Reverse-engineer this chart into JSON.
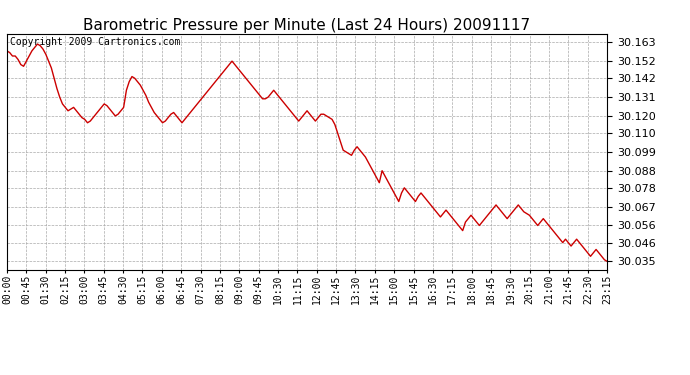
{
  "title": "Barometric Pressure per Minute (Last 24 Hours) 20091117",
  "copyright_text": "Copyright 2009 Cartronics.com",
  "line_color": "#cc0000",
  "background_color": "#ffffff",
  "grid_color": "#aaaaaa",
  "yticks": [
    30.035,
    30.046,
    30.056,
    30.067,
    30.078,
    30.088,
    30.099,
    30.11,
    30.12,
    30.131,
    30.142,
    30.152,
    30.163
  ],
  "ylim": [
    30.03,
    30.168
  ],
  "xtick_labels": [
    "00:00",
    "00:45",
    "01:30",
    "02:15",
    "03:00",
    "03:45",
    "04:30",
    "05:15",
    "06:00",
    "06:45",
    "07:30",
    "08:15",
    "09:00",
    "09:45",
    "10:30",
    "11:15",
    "12:00",
    "12:45",
    "13:30",
    "14:15",
    "15:00",
    "15:45",
    "16:30",
    "17:15",
    "18:00",
    "18:45",
    "19:30",
    "20:15",
    "21:00",
    "21:45",
    "22:30",
    "23:15"
  ],
  "pressure_data": [
    30.158,
    30.157,
    30.155,
    30.155,
    30.153,
    30.15,
    30.149,
    30.152,
    30.155,
    30.158,
    30.16,
    30.162,
    30.161,
    30.159,
    30.156,
    30.152,
    30.148,
    30.142,
    30.136,
    30.131,
    30.127,
    30.125,
    30.123,
    30.124,
    30.125,
    30.123,
    30.121,
    30.119,
    30.118,
    30.116,
    30.117,
    30.119,
    30.121,
    30.123,
    30.125,
    30.127,
    30.126,
    30.124,
    30.122,
    30.12,
    30.121,
    30.123,
    30.125,
    30.135,
    30.14,
    30.143,
    30.142,
    30.14,
    30.138,
    30.135,
    30.132,
    30.128,
    30.125,
    30.122,
    30.12,
    30.118,
    30.116,
    30.117,
    30.119,
    30.121,
    30.122,
    30.12,
    30.118,
    30.116,
    30.118,
    30.12,
    30.122,
    30.124,
    30.126,
    30.128,
    30.13,
    30.132,
    30.134,
    30.136,
    30.138,
    30.14,
    30.142,
    30.144,
    30.146,
    30.148,
    30.15,
    30.152,
    30.15,
    30.148,
    30.146,
    30.144,
    30.142,
    30.14,
    30.138,
    30.136,
    30.134,
    30.132,
    30.13,
    30.13,
    30.131,
    30.133,
    30.135,
    30.133,
    30.131,
    30.129,
    30.127,
    30.125,
    30.123,
    30.121,
    30.119,
    30.117,
    30.119,
    30.121,
    30.123,
    30.121,
    30.119,
    30.117,
    30.119,
    30.121,
    30.121,
    30.12,
    30.119,
    30.118,
    30.115,
    30.11,
    30.105,
    30.1,
    30.099,
    30.098,
    30.097,
    30.1,
    30.102,
    30.1,
    30.098,
    30.096,
    30.093,
    30.09,
    30.087,
    30.084,
    30.081,
    30.088,
    30.085,
    30.082,
    30.079,
    30.076,
    30.073,
    30.07,
    30.075,
    30.078,
    30.076,
    30.074,
    30.072,
    30.07,
    30.073,
    30.075,
    30.073,
    30.071,
    30.069,
    30.067,
    30.065,
    30.063,
    30.061,
    30.063,
    30.065,
    30.063,
    30.061,
    30.059,
    30.057,
    30.055,
    30.053,
    30.058,
    30.06,
    30.062,
    30.06,
    30.058,
    30.056,
    30.058,
    30.06,
    30.062,
    30.064,
    30.066,
    30.068,
    30.066,
    30.064,
    30.062,
    30.06,
    30.062,
    30.064,
    30.066,
    30.068,
    30.066,
    30.064,
    30.063,
    30.062,
    30.06,
    30.058,
    30.056,
    30.058,
    30.06,
    30.058,
    30.056,
    30.054,
    30.052,
    30.05,
    30.048,
    30.046,
    30.048,
    30.046,
    30.044,
    30.046,
    30.048,
    30.046,
    30.044,
    30.042,
    30.04,
    30.038,
    30.04,
    30.042,
    30.04,
    30.038,
    30.036,
    30.035
  ]
}
